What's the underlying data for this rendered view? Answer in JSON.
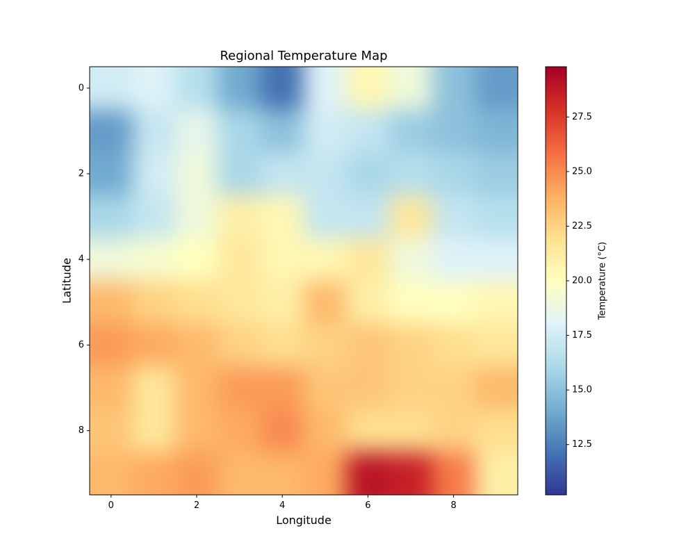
{
  "chart_data": {
    "type": "heatmap",
    "title": "Regional Temperature Map",
    "xlabel": "Longitude",
    "ylabel": "Latitude",
    "colorbar_label": "Temperature (°C)",
    "colormap": "RdYlBu_r",
    "grid": false,
    "x_ticks": [
      0,
      2,
      4,
      6,
      8
    ],
    "y_ticks": [
      0,
      2,
      4,
      6,
      8
    ],
    "xlim": [
      -0.5,
      9.5
    ],
    "ylim": [
      9.5,
      -0.5
    ],
    "colorbar_ticks": [
      "12.5",
      "15.0",
      "17.5",
      "20.0",
      "22.5",
      "25.0",
      "27.5"
    ],
    "vmin": 10.2,
    "vmax": 29.8,
    "values": [
      [
        17.5,
        18.0,
        16.5,
        14.0,
        12.0,
        18.0,
        20.5,
        19.0,
        15.0,
        13.5
      ],
      [
        13.5,
        17.0,
        18.5,
        16.0,
        15.0,
        17.5,
        17.0,
        15.5,
        15.0,
        14.5
      ],
      [
        14.0,
        17.5,
        19.0,
        16.0,
        17.0,
        17.0,
        16.0,
        16.5,
        16.0,
        15.5
      ],
      [
        16.0,
        17.0,
        19.0,
        21.0,
        20.5,
        17.0,
        17.0,
        21.5,
        17.0,
        16.5
      ],
      [
        19.0,
        19.5,
        20.0,
        21.5,
        20.5,
        20.5,
        21.5,
        19.0,
        18.0,
        18.0
      ],
      [
        23.5,
        22.5,
        22.0,
        21.5,
        21.0,
        23.5,
        21.0,
        20.0,
        20.0,
        20.5
      ],
      [
        24.5,
        24.0,
        23.5,
        22.5,
        22.0,
        22.5,
        23.0,
        22.5,
        22.0,
        21.5
      ],
      [
        23.5,
        21.5,
        23.5,
        24.5,
        24.5,
        23.0,
        23.0,
        22.5,
        22.5,
        23.5
      ],
      [
        23.0,
        21.5,
        23.5,
        24.0,
        25.0,
        23.5,
        22.0,
        22.0,
        22.5,
        22.0
      ],
      [
        23.5,
        24.0,
        24.5,
        23.5,
        23.5,
        24.0,
        29.0,
        28.5,
        25.5,
        21.0
      ]
    ]
  }
}
